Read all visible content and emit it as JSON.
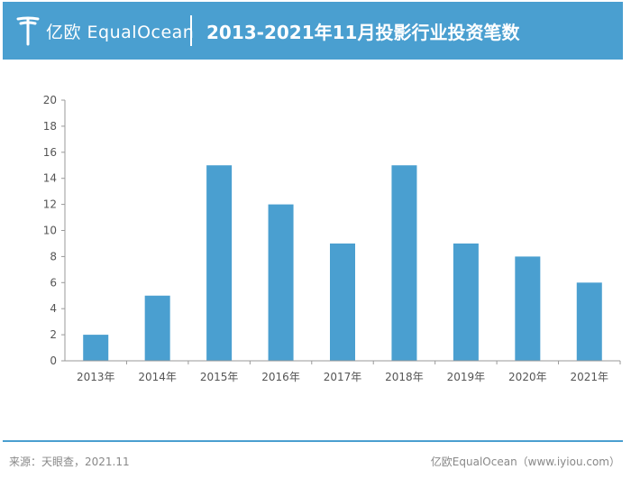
{
  "header": {
    "logo_text": "亿欧 EqualOcean",
    "title": "2013-2021年11月投影行业投资笔数"
  },
  "chart_data": {
    "type": "bar",
    "title": "2013-2021年11月投影行业投资笔数",
    "categories": [
      "2013年",
      "2014年",
      "2015年",
      "2016年",
      "2017年",
      "2018年",
      "2019年",
      "2020年",
      "2021年"
    ],
    "values": [
      2,
      5,
      15,
      12,
      9,
      15,
      9,
      8,
      6
    ],
    "xlabel": "",
    "ylabel": "",
    "ylim": [
      0,
      20
    ],
    "yticks": [
      "0",
      "2",
      "4",
      "6",
      "8",
      "10",
      "12",
      "14",
      "16",
      "18",
      "20"
    ],
    "bar_color": "#4a9fd0",
    "grid": false
  },
  "footer": {
    "source": "来源：天眼查，2021.11",
    "credit": "亿欧EqualOcean（www.iyiou.com）"
  }
}
